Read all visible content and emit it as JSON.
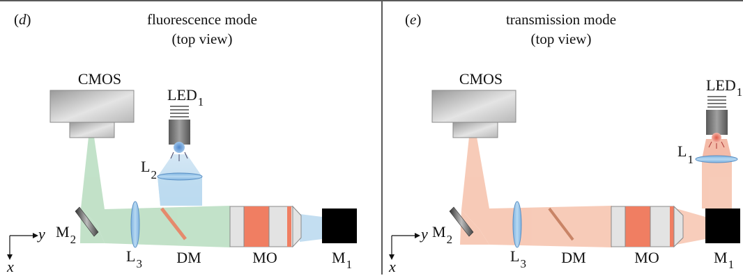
{
  "panels": [
    {
      "id": "d",
      "letter": "d",
      "title_line1": "fluorescence mode",
      "title_line2": "(top view)",
      "labels": {
        "camera": "CMOS",
        "led_base": "LED",
        "led_sub": "1",
        "lens2_base": "L",
        "lens2_sub": "2",
        "lens3_base": "L",
        "lens3_sub": "3",
        "mirror2_base": "M",
        "mirror2_sub": "2",
        "dichroic": "DM",
        "objective": "MO",
        "mirror1_base": "M",
        "mirror1_sub": "1",
        "axis_y": "y",
        "axis_x": "x"
      },
      "colors": {
        "emission_beam": "#b9dcc0",
        "excitation_beam": "#b9d9ee",
        "led_glow": "#6f9fd6"
      }
    },
    {
      "id": "e",
      "letter": "e",
      "title_line1": "transmission mode",
      "title_line2": "(top view)",
      "labels": {
        "camera": "CMOS",
        "led_base": "LED",
        "led_sub": "1",
        "lens1_base": "L",
        "lens1_sub": "1",
        "lens3_base": "L",
        "lens3_sub": "3",
        "mirror2_base": "M",
        "mirror2_sub": "2",
        "dichroic": "DM",
        "objective": "MO",
        "mirror1_base": "M",
        "mirror1_sub": "1",
        "axis_y": "y",
        "axis_x": "x"
      },
      "colors": {
        "beam": "#f6c4b0",
        "led_glow": "#e87060"
      }
    }
  ]
}
